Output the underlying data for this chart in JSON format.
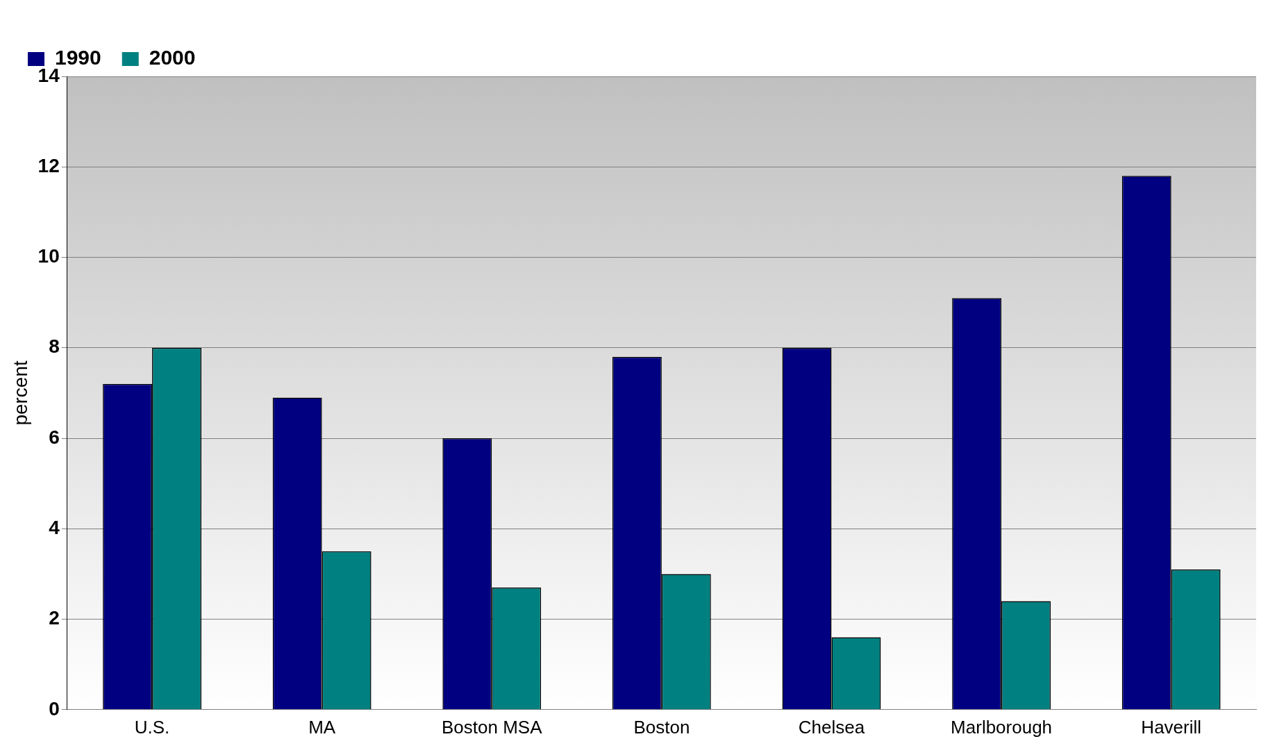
{
  "chart_data": {
    "type": "bar",
    "ylabel": "percent",
    "categories": [
      "U.S.",
      "MA",
      "Boston MSA",
      "Boston",
      "Chelsea",
      "Marlborough",
      "Haverill"
    ],
    "series": [
      {
        "name": "1990",
        "color": "#000080",
        "values": [
          7.2,
          6.9,
          6.0,
          7.8,
          8.0,
          9.1,
          11.8
        ]
      },
      {
        "name": "2000",
        "color": "#008080",
        "values": [
          8.0,
          3.5,
          2.7,
          3.0,
          1.6,
          2.4,
          3.1
        ]
      }
    ],
    "ylim": [
      0,
      14
    ],
    "yticks": [
      0,
      2,
      4,
      6,
      8,
      10,
      12,
      14
    ],
    "grid": "y",
    "legend": "top left"
  }
}
